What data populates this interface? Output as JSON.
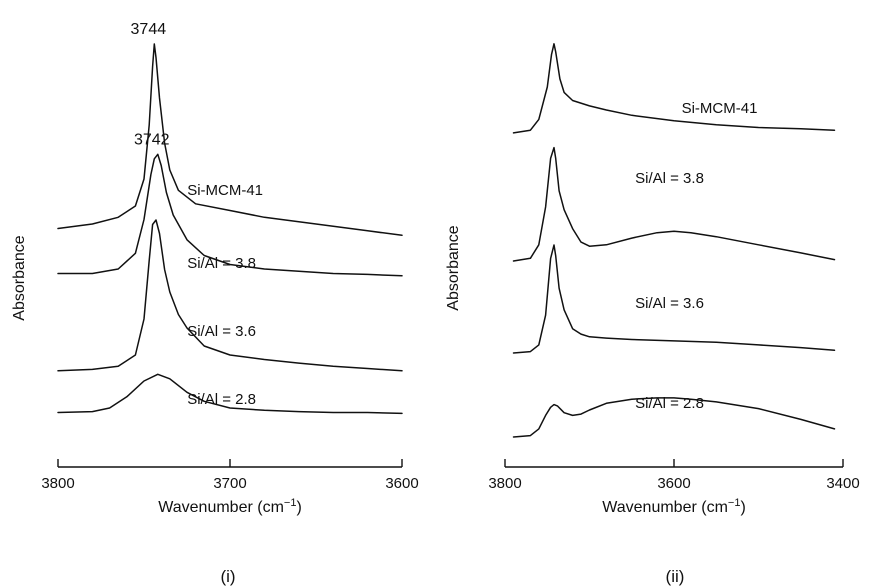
{
  "chart_data": [
    {
      "type": "line",
      "panel_label": "(i)",
      "xlabel": "Wavenumber (cm⁻¹)",
      "ylabel": "Absorbance",
      "xlim": [
        3800,
        3600
      ],
      "x_reversed": true,
      "x_ticks": [
        3800,
        3700,
        3600
      ],
      "y_ticks": [],
      "grid": false,
      "annotations": [
        {
          "text": "3744",
          "x": 3744,
          "series": "Si-MCM-41"
        },
        {
          "text": "3742",
          "x": 3742,
          "series": "Si/Al = 3.8"
        }
      ],
      "series": [
        {
          "name": "Si-MCM-41",
          "x": [
            3800,
            3780,
            3765,
            3755,
            3750,
            3747,
            3745,
            3744,
            3743,
            3741,
            3738,
            3735,
            3730,
            3720,
            3700,
            3680,
            3660,
            3640,
            3620,
            3600
          ],
          "y": [
            0.3,
            0.4,
            0.55,
            0.8,
            1.4,
            2.6,
            3.9,
            4.4,
            4.1,
            3.2,
            2.2,
            1.6,
            1.15,
            0.85,
            0.7,
            0.55,
            0.45,
            0.35,
            0.25,
            0.15
          ]
        },
        {
          "name": "Si/Al = 3.8",
          "x": [
            3800,
            3780,
            3765,
            3755,
            3750,
            3746,
            3744,
            3742,
            3740,
            3737,
            3733,
            3725,
            3715,
            3700,
            3680,
            3660,
            3640,
            3620,
            3600
          ],
          "y": [
            0.3,
            0.3,
            0.4,
            0.75,
            1.5,
            2.5,
            2.85,
            2.95,
            2.7,
            2.1,
            1.6,
            1.05,
            0.7,
            0.5,
            0.4,
            0.35,
            0.3,
            0.28,
            0.25
          ]
        },
        {
          "name": "Si/Al = 3.6",
          "x": [
            3800,
            3780,
            3765,
            3755,
            3750,
            3747,
            3745,
            3743,
            3741,
            3738,
            3735,
            3730,
            3725,
            3715,
            3700,
            3680,
            3660,
            3640,
            3620,
            3600
          ],
          "y": [
            0.05,
            0.08,
            0.15,
            0.4,
            1.2,
            2.5,
            3.3,
            3.4,
            3.1,
            2.3,
            1.8,
            1.3,
            1.0,
            0.6,
            0.4,
            0.3,
            0.22,
            0.15,
            0.1,
            0.05
          ]
        },
        {
          "name": "Si/Al = 2.8",
          "x": [
            3800,
            3780,
            3770,
            3760,
            3750,
            3742,
            3735,
            3725,
            3715,
            3700,
            3680,
            3660,
            3640,
            3620,
            3600
          ],
          "y": [
            0.1,
            0.12,
            0.2,
            0.45,
            0.8,
            0.95,
            0.85,
            0.55,
            0.35,
            0.2,
            0.15,
            0.12,
            0.1,
            0.1,
            0.08
          ]
        }
      ]
    },
    {
      "type": "line",
      "panel_label": "(ii)",
      "xlabel": "Wavenumber (cm⁻¹)",
      "ylabel": "Absorbance",
      "xlim": [
        3800,
        3400
      ],
      "x_reversed": true,
      "x_ticks": [
        3800,
        3600,
        3400
      ],
      "y_ticks": [],
      "grid": false,
      "annotations": [],
      "series": [
        {
          "name": "Si-MCM-41",
          "x": [
            3790,
            3770,
            3760,
            3750,
            3745,
            3742,
            3740,
            3735,
            3730,
            3720,
            3700,
            3680,
            3650,
            3600,
            3550,
            3500,
            3450,
            3410
          ],
          "y": [
            0.3,
            0.4,
            0.8,
            2.0,
            3.2,
            3.6,
            3.3,
            2.3,
            1.8,
            1.5,
            1.3,
            1.15,
            0.95,
            0.75,
            0.6,
            0.5,
            0.45,
            0.4
          ]
        },
        {
          "name": "Si/Al = 3.8",
          "x": [
            3790,
            3770,
            3760,
            3752,
            3746,
            3742,
            3740,
            3736,
            3730,
            3720,
            3710,
            3700,
            3680,
            3650,
            3620,
            3600,
            3580,
            3550,
            3500,
            3450,
            3410
          ],
          "y": [
            0.0,
            0.1,
            0.6,
            2.0,
            3.8,
            4.2,
            3.8,
            2.6,
            1.9,
            1.2,
            0.7,
            0.55,
            0.6,
            0.85,
            1.05,
            1.1,
            1.05,
            0.9,
            0.6,
            0.3,
            0.05
          ]
        },
        {
          "name": "Si/Al = 3.6",
          "x": [
            3790,
            3770,
            3760,
            3752,
            3746,
            3742,
            3740,
            3736,
            3730,
            3720,
            3710,
            3700,
            3680,
            3650,
            3600,
            3550,
            3500,
            3450,
            3410
          ],
          "y": [
            0.0,
            0.05,
            0.3,
            1.4,
            3.5,
            4.0,
            3.6,
            2.4,
            1.6,
            0.9,
            0.7,
            0.6,
            0.55,
            0.5,
            0.45,
            0.4,
            0.3,
            0.2,
            0.1
          ]
        },
        {
          "name": "Si/Al = 2.8",
          "x": [
            3790,
            3770,
            3760,
            3752,
            3746,
            3742,
            3738,
            3730,
            3720,
            3710,
            3700,
            3680,
            3650,
            3620,
            3600,
            3580,
            3550,
            3500,
            3450,
            3410
          ],
          "y": [
            0.0,
            0.05,
            0.3,
            0.8,
            1.1,
            1.2,
            1.15,
            0.9,
            0.8,
            0.85,
            1.0,
            1.25,
            1.4,
            1.45,
            1.45,
            1.4,
            1.3,
            1.05,
            0.65,
            0.3
          ]
        }
      ]
    }
  ]
}
